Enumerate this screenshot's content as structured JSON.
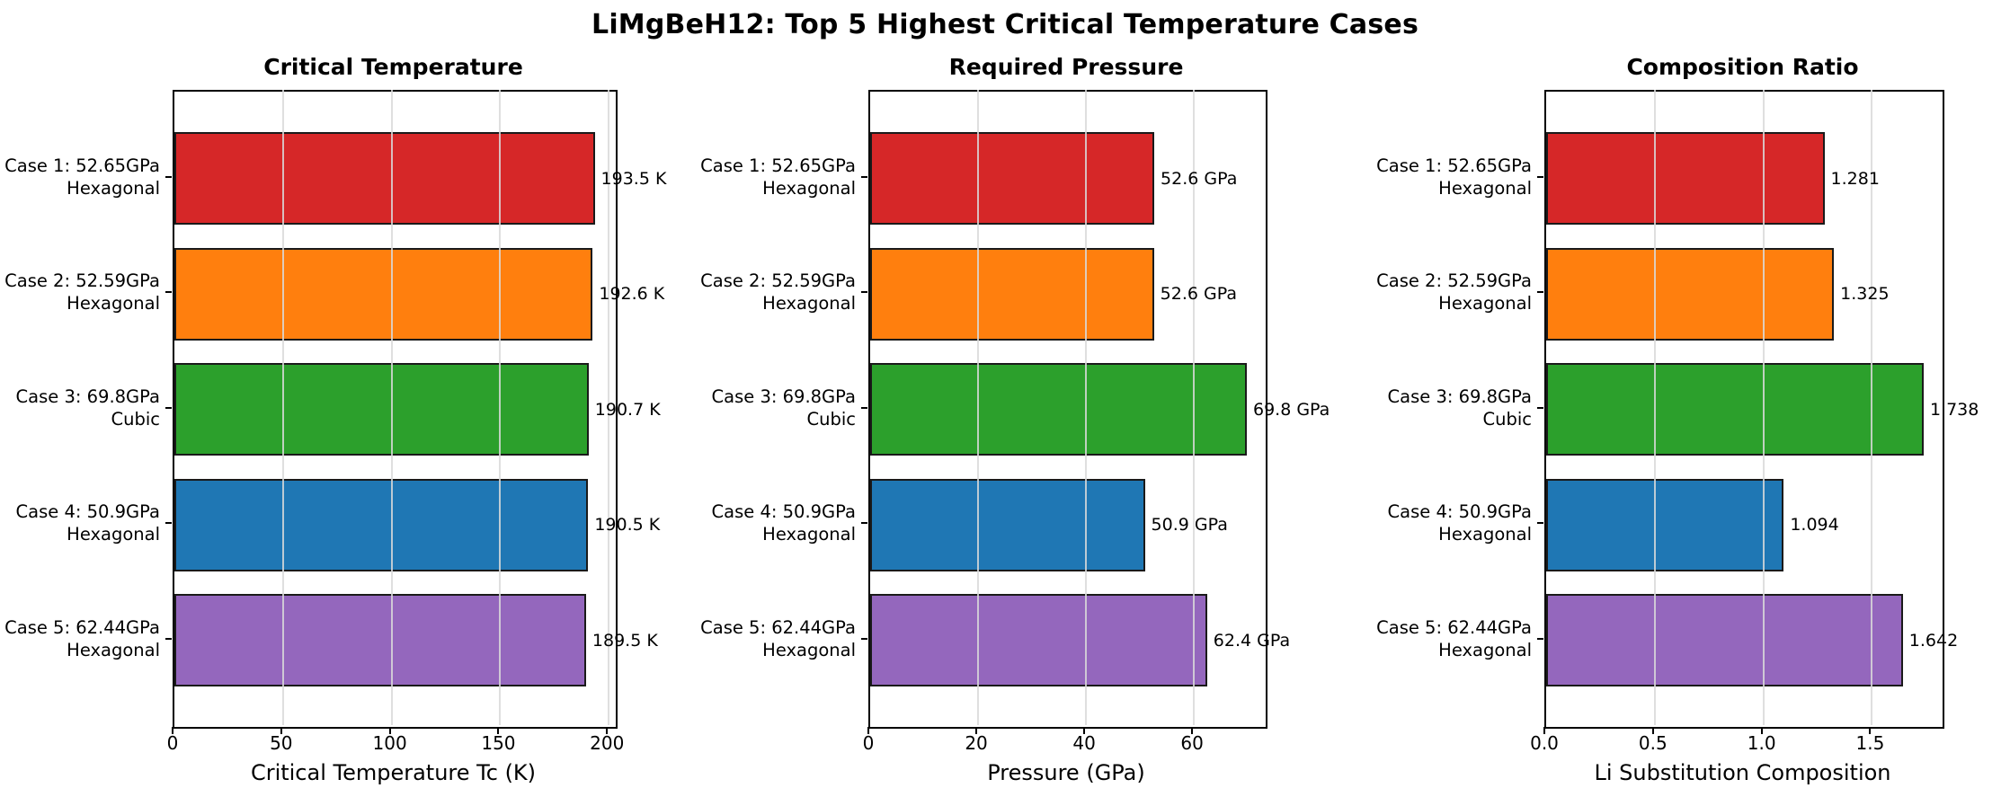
{
  "figure": {
    "title": "LiMgBeH12: Top 5 Highest Critical Temperature Cases"
  },
  "bar_colors": [
    "#d62728",
    "#ff7f0e",
    "#2ca02c",
    "#1f77b4",
    "#9467bd"
  ],
  "bar_edge_color": "#1a1a1a",
  "grid_color": "#d9d9d9",
  "chart_data": [
    {
      "type": "bar",
      "orientation": "horizontal",
      "title": "Critical Temperature",
      "xlabel": "Critical Temperature Tc (K)",
      "categories": [
        [
          "Case 1: 52.65GPa",
          "Hexagonal"
        ],
        [
          "Case 2: 52.59GPa",
          "Hexagonal"
        ],
        [
          "Case 3: 69.8GPa",
          "Cubic"
        ],
        [
          "Case 4: 50.9GPa",
          "Hexagonal"
        ],
        [
          "Case 5: 62.44GPa",
          "Hexagonal"
        ]
      ],
      "values": [
        193.5,
        192.6,
        190.7,
        190.5,
        189.5
      ],
      "value_labels": [
        "193.5 K",
        "192.6 K",
        "190.7 K",
        "190.5 K",
        "189.5 K"
      ],
      "xticks": [
        0,
        50,
        100,
        150,
        200
      ],
      "xtick_labels": [
        "0",
        "50",
        "100",
        "150",
        "200"
      ],
      "xlim": [
        0,
        203.2
      ],
      "grid": "x",
      "legend": "none"
    },
    {
      "type": "bar",
      "orientation": "horizontal",
      "title": "Required Pressure",
      "xlabel": "Pressure (GPa)",
      "categories": [
        [
          "Case 1: 52.65GPa",
          "Hexagonal"
        ],
        [
          "Case 2: 52.59GPa",
          "Hexagonal"
        ],
        [
          "Case 3: 69.8GPa",
          "Cubic"
        ],
        [
          "Case 4: 50.9GPa",
          "Hexagonal"
        ],
        [
          "Case 5: 62.44GPa",
          "Hexagonal"
        ]
      ],
      "values": [
        52.65,
        52.59,
        69.8,
        50.9,
        62.44
      ],
      "value_labels": [
        "52.6 GPa",
        "52.6 GPa",
        "69.8 GPa",
        "50.9 GPa",
        "62.4 GPa"
      ],
      "xticks": [
        0,
        20,
        40,
        60
      ],
      "xtick_labels": [
        "0",
        "20",
        "40",
        "60"
      ],
      "xlim": [
        0,
        73.3
      ],
      "grid": "x",
      "legend": "none"
    },
    {
      "type": "bar",
      "orientation": "horizontal",
      "title": "Composition Ratio",
      "xlabel": "Li Substitution Composition",
      "categories": [
        [
          "Case 1: 52.65GPa",
          "Hexagonal"
        ],
        [
          "Case 2: 52.59GPa",
          "Hexagonal"
        ],
        [
          "Case 3: 69.8GPa",
          "Cubic"
        ],
        [
          "Case 4: 50.9GPa",
          "Hexagonal"
        ],
        [
          "Case 5: 62.44GPa",
          "Hexagonal"
        ]
      ],
      "values": [
        1.281,
        1.325,
        1.738,
        1.094,
        1.642
      ],
      "value_labels": [
        "1.281",
        "1.325",
        "1.738",
        "1.094",
        "1.642"
      ],
      "xticks": [
        0,
        0.5,
        1.0,
        1.5
      ],
      "xtick_labels": [
        "0.0",
        "0.5",
        "1.0",
        "1.5"
      ],
      "xlim": [
        0,
        1.825
      ],
      "grid": "x",
      "legend": "none"
    }
  ]
}
